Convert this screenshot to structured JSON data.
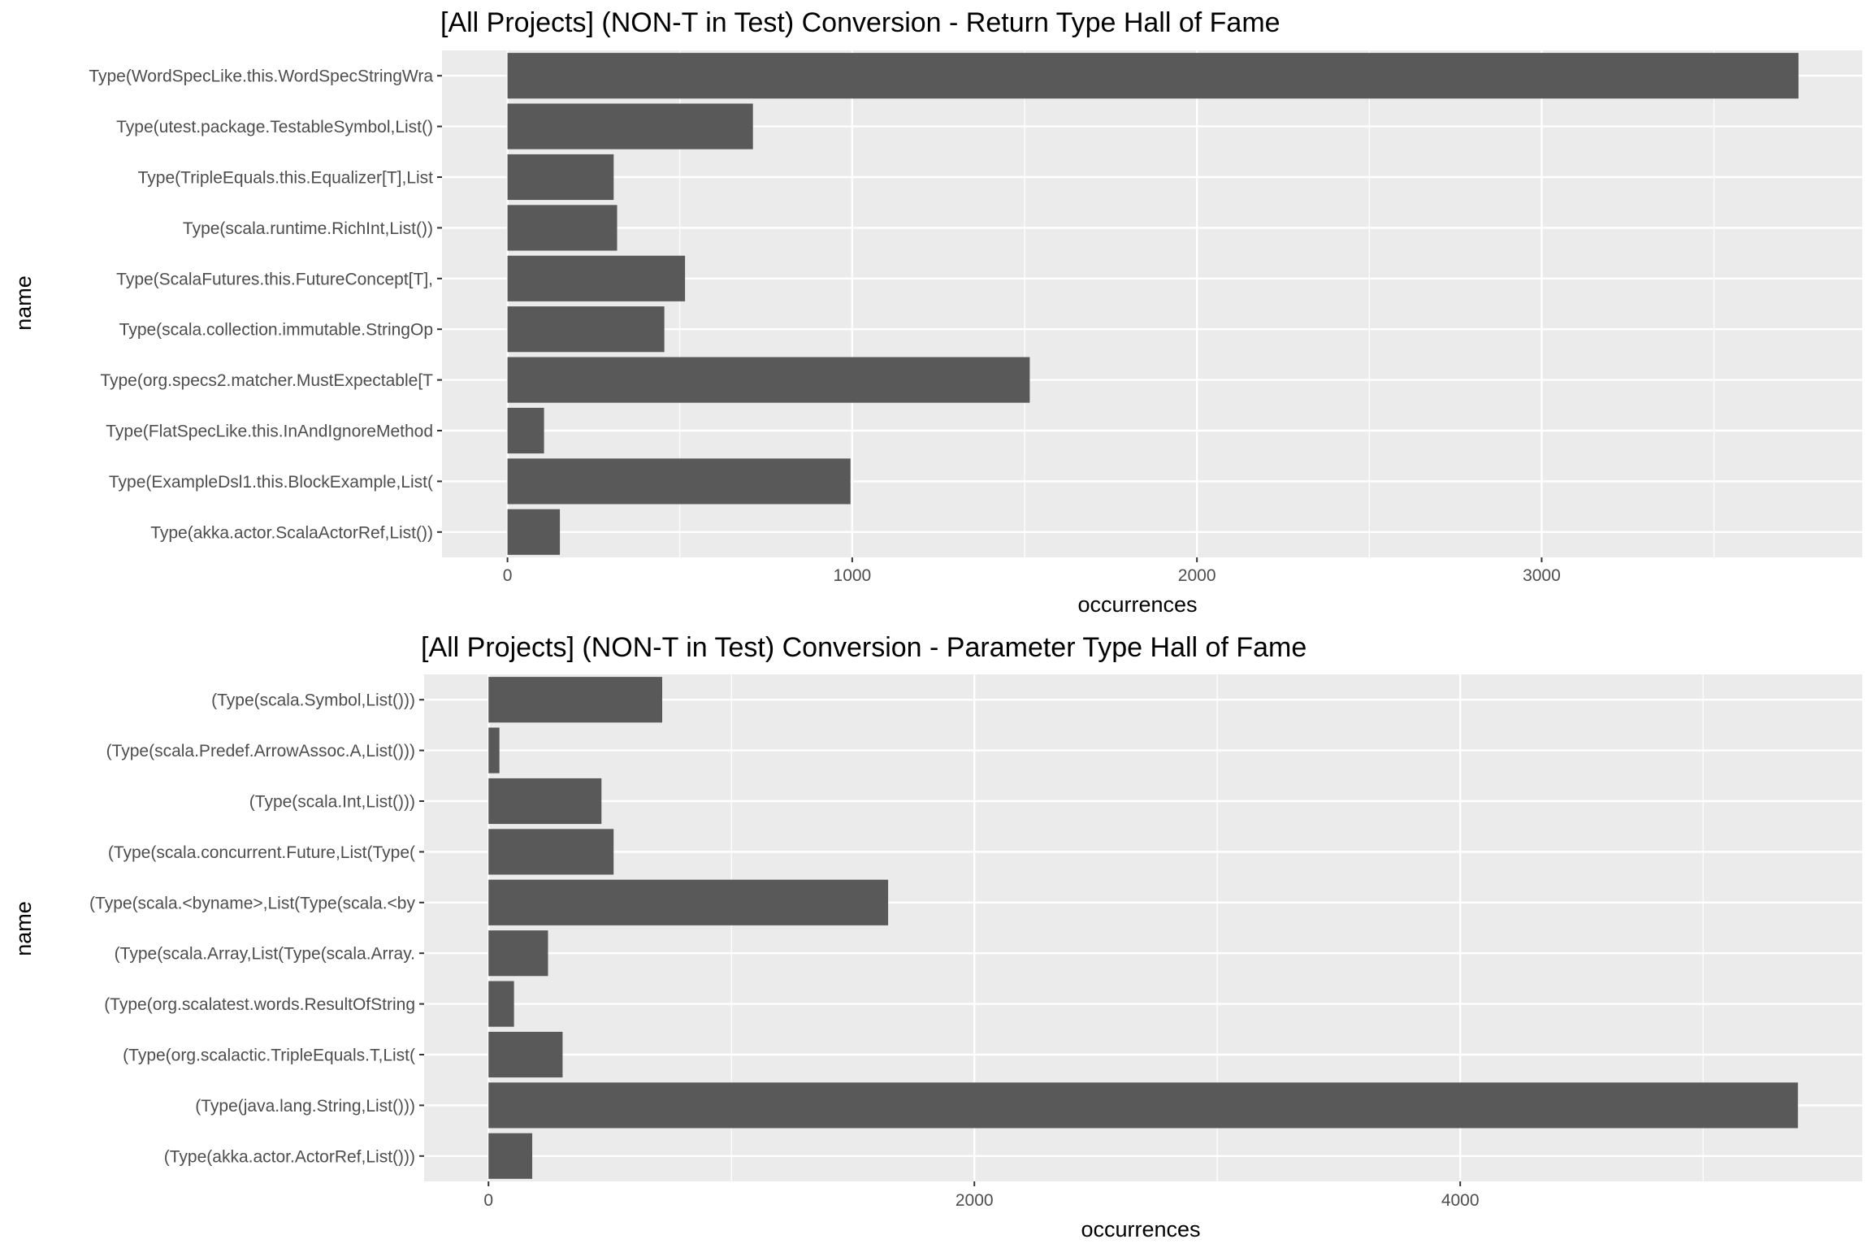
{
  "chart_data": [
    {
      "type": "bar",
      "orientation": "horizontal",
      "title": "[All Projects] (NON-T in Test) Conversion - Return Type Hall of Fame",
      "xlabel": "occurrences",
      "ylabel": "name",
      "xlim": [
        -190,
        3930
      ],
      "xticks": [
        0,
        1000,
        2000,
        3000
      ],
      "grid": true,
      "bar_color": "#595959",
      "categories": [
        "Type(WordSpecLike.this.WordSpecStringWra",
        "Type(utest.package.TestableSymbol,List()",
        "Type(TripleEquals.this.Equalizer[T],List",
        "Type(scala.runtime.RichInt,List())",
        "Type(ScalaFutures.this.FutureConcept[T],",
        "Type(scala.collection.immutable.StringOp",
        "Type(org.specs2.matcher.MustExpectable[T",
        "Type(FlatSpecLike.this.InAndIgnoreMethod",
        "Type(ExampleDsl1.this.BlockExample,List(",
        "Type(akka.actor.ScalaActorRef,List())"
      ],
      "values": [
        3745,
        712,
        308,
        318,
        515,
        455,
        1515,
        106,
        995,
        152
      ]
    },
    {
      "type": "bar",
      "orientation": "horizontal",
      "title": "[All Projects] (NON-T in Test) Conversion - Parameter Type Hall of Fame",
      "xlabel": "occurrences",
      "ylabel": "name",
      "xlim": [
        -265,
        5655
      ],
      "xticks": [
        0,
        2000,
        4000
      ],
      "grid": true,
      "bar_color": "#595959",
      "categories": [
        "(Type(scala.Symbol,List()))",
        "(Type(scala.Predef.ArrowAssoc.A,List()))",
        "(Type(scala.Int,List()))",
        "(Type(scala.concurrent.Future,List(Type(",
        "(Type(scala.<byname>,List(Type(scala.<by",
        "(Type(scala.Array,List(Type(scala.Array.",
        "(Type(org.scalatest.words.ResultOfString",
        "(Type(org.scalactic.TripleEquals.T,List(",
        "(Type(java.lang.String,List()))",
        "(Type(akka.actor.ActorRef,List()))"
      ],
      "values": [
        715,
        45,
        465,
        515,
        1645,
        245,
        105,
        305,
        5390,
        180
      ]
    }
  ]
}
